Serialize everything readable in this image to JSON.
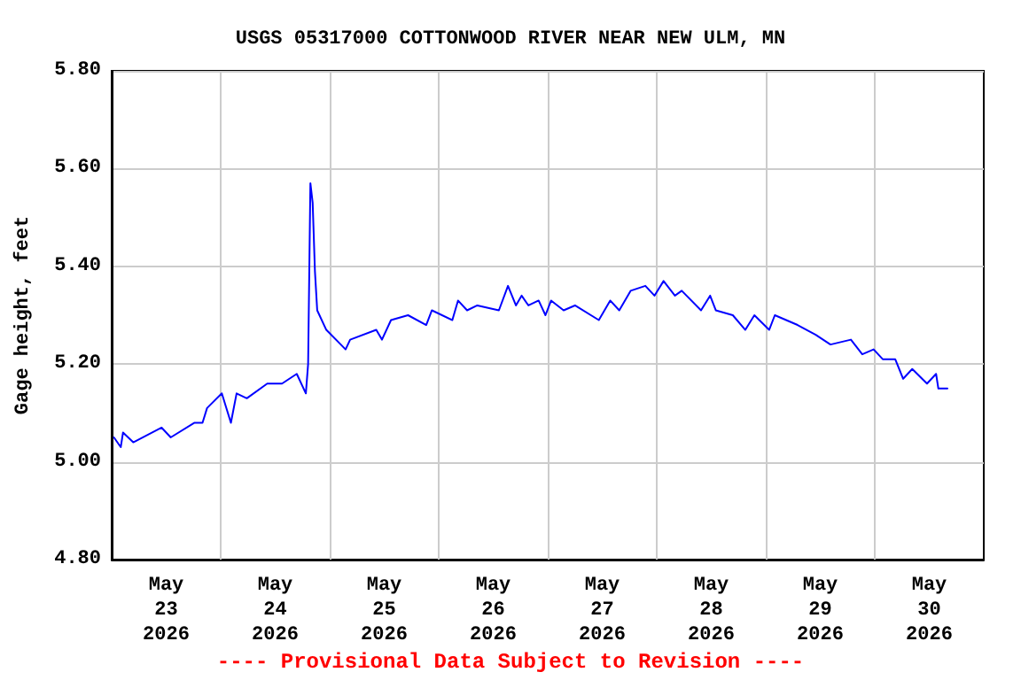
{
  "chart_data": {
    "type": "line",
    "title": "USGS 05317000 COTTONWOOD RIVER NEAR NEW ULM, MN",
    "ylabel": "Gage height, feet",
    "annotations": [
      "---- Provisional Data Subject to Revision ----"
    ],
    "xlim": [
      "2026-05-23T00:00",
      "2026-05-31T00:00"
    ],
    "xticks": [
      {
        "value": "2026-05-23T12:00",
        "label": "May\n23\n2026"
      },
      {
        "value": "2026-05-24T12:00",
        "label": "May\n24\n2026"
      },
      {
        "value": "2026-05-25T12:00",
        "label": "May\n25\n2026"
      },
      {
        "value": "2026-05-26T12:00",
        "label": "May\n26\n2026"
      },
      {
        "value": "2026-05-27T12:00",
        "label": "May\n27\n2026"
      },
      {
        "value": "2026-05-28T12:00",
        "label": "May\n28\n2026"
      },
      {
        "value": "2026-05-29T12:00",
        "label": "May\n29\n2026"
      },
      {
        "value": "2026-05-30T12:00",
        "label": "May\n30\n2026"
      },
      {
        "value": "2026-05-24T00:00",
        "label": null
      },
      {
        "value": "2026-05-25T00:00",
        "label": null
      },
      {
        "value": "2026-05-26T00:00",
        "label": null
      },
      {
        "value": "2026-05-27T00:00",
        "label": null
      },
      {
        "value": "2026-05-28T00:00",
        "label": null
      },
      {
        "value": "2026-05-29T00:00",
        "label": null
      },
      {
        "value": "2026-05-30T00:00",
        "label": null
      }
    ],
    "ylim": [
      4.8,
      5.8
    ],
    "yticks": [
      {
        "value": 4.8,
        "label": "4.80"
      },
      {
        "value": 5.0,
        "label": "5.00"
      },
      {
        "value": 5.2,
        "label": "5.20"
      },
      {
        "value": 5.4,
        "label": "5.40"
      },
      {
        "value": 5.6,
        "label": "5.60"
      },
      {
        "value": 5.8,
        "label": "5.80"
      }
    ],
    "grid": true,
    "marker": "none",
    "line_style": "solid",
    "series": [
      {
        "color": "#0000ff",
        "x": [
          "2026-05-23T00:30",
          "2026-05-23T02:00",
          "2026-05-23T02:30",
          "2026-05-23T04:45",
          "2026-05-23T11:00",
          "2026-05-23T13:00",
          "2026-05-23T18:15",
          "2026-05-23T20:00",
          "2026-05-23T21:00",
          "2026-05-24T00:15",
          "2026-05-24T02:15",
          "2026-05-24T03:30",
          "2026-05-24T05:45",
          "2026-05-24T10:15",
          "2026-05-24T13:30",
          "2026-05-24T16:45",
          "2026-05-24T18:45",
          "2026-05-24T19:15",
          "2026-05-24T19:45",
          "2026-05-24T20:15",
          "2026-05-24T20:45",
          "2026-05-24T21:15",
          "2026-05-24T23:15",
          "2026-05-25T03:30",
          "2026-05-25T04:30",
          "2026-05-25T10:15",
          "2026-05-25T11:30",
          "2026-05-25T13:30",
          "2026-05-25T17:15",
          "2026-05-25T21:15",
          "2026-05-25T22:30",
          "2026-05-26T03:00",
          "2026-05-26T04:15",
          "2026-05-26T06:15",
          "2026-05-26T08:30",
          "2026-05-26T13:15",
          "2026-05-26T15:15",
          "2026-05-26T17:00",
          "2026-05-26T18:15",
          "2026-05-26T19:45",
          "2026-05-26T22:00",
          "2026-05-26T23:30",
          "2026-05-27T00:45",
          "2026-05-27T03:30",
          "2026-05-27T06:00",
          "2026-05-27T11:15",
          "2026-05-27T13:45",
          "2026-05-27T15:45",
          "2026-05-27T18:15",
          "2026-05-27T21:30",
          "2026-05-27T23:30",
          "2026-05-28T01:30",
          "2026-05-28T04:00",
          "2026-05-28T05:30",
          "2026-05-28T09:45",
          "2026-05-28T11:45",
          "2026-05-28T13:00",
          "2026-05-28T16:45",
          "2026-05-28T19:30",
          "2026-05-28T21:30",
          "2026-05-29T00:45",
          "2026-05-29T02:00",
          "2026-05-29T07:00",
          "2026-05-29T11:00",
          "2026-05-29T14:15",
          "2026-05-29T18:45",
          "2026-05-29T21:15",
          "2026-05-29T23:45",
          "2026-05-30T01:45",
          "2026-05-30T04:30",
          "2026-05-30T06:15",
          "2026-05-30T08:15",
          "2026-05-30T11:30",
          "2026-05-30T13:30",
          "2026-05-30T14:00",
          "2026-05-30T16:00"
        ],
        "values": [
          5.05,
          5.03,
          5.06,
          5.04,
          5.07,
          5.05,
          5.08,
          5.08,
          5.11,
          5.14,
          5.08,
          5.14,
          5.13,
          5.16,
          5.16,
          5.18,
          5.14,
          5.2,
          5.57,
          5.53,
          5.39,
          5.31,
          5.27,
          5.23,
          5.25,
          5.27,
          5.25,
          5.29,
          5.3,
          5.28,
          5.31,
          5.29,
          5.33,
          5.31,
          5.32,
          5.31,
          5.36,
          5.32,
          5.34,
          5.32,
          5.33,
          5.3,
          5.33,
          5.31,
          5.32,
          5.29,
          5.33,
          5.31,
          5.35,
          5.36,
          5.34,
          5.37,
          5.34,
          5.35,
          5.31,
          5.34,
          5.31,
          5.3,
          5.27,
          5.3,
          5.27,
          5.3,
          5.28,
          5.26,
          5.24,
          5.25,
          5.22,
          5.23,
          5.21,
          5.21,
          5.17,
          5.19,
          5.16,
          5.18,
          5.15,
          5.15
        ]
      }
    ]
  }
}
